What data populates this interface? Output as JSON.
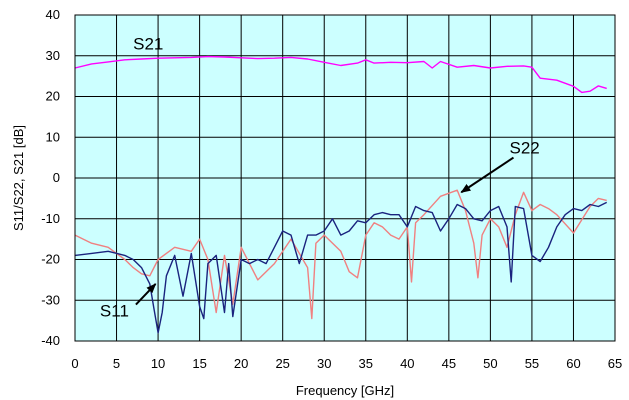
{
  "chart_data": {
    "type": "line",
    "xlabel": "Frequency [GHz]",
    "ylabel": "S11/S22, S21 [dB]",
    "xlim": [
      0,
      65
    ],
    "ylim": [
      -40,
      40
    ],
    "xticks": [
      0,
      5,
      10,
      15,
      20,
      25,
      30,
      35,
      40,
      45,
      50,
      55,
      60,
      65
    ],
    "yticks": [
      -40,
      -30,
      -20,
      -10,
      0,
      10,
      20,
      30,
      40
    ],
    "grid": true,
    "plot_background": "#ccffff",
    "annotations": [
      {
        "text": "S21",
        "x": 7,
        "y": 31.5,
        "arrow": false
      },
      {
        "text": "S22",
        "x": 52.3,
        "y": 6,
        "arrow": true,
        "arrow_to": [
          46.5,
          -3.5
        ]
      },
      {
        "text": "S11",
        "x": 3,
        "y": -34,
        "arrow": true,
        "arrow_to": [
          9.7,
          -26
        ]
      }
    ],
    "series": [
      {
        "name": "S21",
        "color": "#ff00ff",
        "x": [
          0,
          2,
          4,
          6,
          8,
          10,
          12,
          14,
          16,
          18,
          20,
          22,
          24,
          26,
          28,
          30,
          32,
          34,
          35,
          36,
          38,
          40,
          42,
          43,
          44,
          46,
          48,
          50,
          52,
          54,
          55,
          56,
          58,
          60,
          61,
          62,
          63,
          64
        ],
        "values": [
          27,
          28,
          28.5,
          29,
          29.2,
          29.4,
          29.5,
          29.6,
          29.8,
          29.7,
          29.5,
          29.3,
          29.4,
          29.6,
          29.2,
          28.4,
          27.6,
          28.2,
          29,
          28.2,
          28.4,
          28.3,
          28.6,
          27,
          28.6,
          27.2,
          27.6,
          27,
          27.4,
          27.5,
          27.2,
          24.5,
          24,
          22.5,
          21,
          21.3,
          22.6,
          22
        ]
      },
      {
        "name": "S22",
        "color": "#f08080",
        "x": [
          0,
          2,
          4,
          6,
          7,
          8,
          9,
          10,
          12,
          14,
          15,
          16,
          17,
          18,
          19,
          20,
          22,
          24,
          26,
          28,
          28.5,
          29,
          30,
          32,
          33,
          34,
          35,
          36,
          37,
          38,
          39,
          40,
          40.5,
          41,
          42,
          44,
          46,
          47,
          48,
          48.5,
          49,
          50,
          51,
          52,
          53,
          54,
          55,
          56,
          57,
          58,
          60,
          62,
          63,
          64
        ],
        "values": [
          -14,
          -16,
          -17,
          -20,
          -22,
          -23.5,
          -24,
          -20,
          -17,
          -18,
          -15,
          -20,
          -33,
          -19,
          -31,
          -17,
          -25,
          -21,
          -15,
          -22,
          -34.5,
          -16,
          -14,
          -18,
          -23,
          -24.5,
          -14,
          -11,
          -12,
          -14,
          -15,
          -12,
          -25.5,
          -11,
          -9,
          -4.5,
          -3,
          -8,
          -16,
          -24.5,
          -14,
          -10,
          -12,
          -17,
          -9,
          -3.5,
          -8,
          -6.5,
          -7.5,
          -9,
          -13.5,
          -7,
          -5,
          -5.5
        ]
      },
      {
        "name": "S11",
        "color": "#1a237e",
        "x": [
          0,
          2,
          4,
          6,
          7,
          8,
          9,
          9.5,
          10,
          10.5,
          11,
          12,
          13,
          14,
          15,
          15.5,
          16,
          17,
          18,
          18.5,
          19,
          20,
          21,
          22,
          23,
          24,
          25,
          26,
          27,
          28,
          29,
          30,
          31,
          32,
          33,
          34,
          35,
          36,
          37,
          38,
          39,
          40,
          41,
          42,
          43,
          44,
          45,
          46,
          47,
          48,
          49,
          50,
          51,
          52,
          52.5,
          53,
          54,
          55,
          56,
          57,
          58,
          59,
          60,
          61,
          62,
          63,
          64
        ],
        "values": [
          -19,
          -18.5,
          -18,
          -19,
          -20,
          -22,
          -26,
          -32,
          -38,
          -33,
          -24,
          -19,
          -29,
          -18.5,
          -31.5,
          -34.5,
          -21,
          -19,
          -33,
          -21,
          -34,
          -20,
          -21,
          -20,
          -21,
          -17,
          -13,
          -14,
          -21,
          -14,
          -14,
          -13,
          -10,
          -14,
          -13,
          -10.5,
          -11,
          -9,
          -8.5,
          -9,
          -9,
          -12,
          -7,
          -8,
          -8.5,
          -13,
          -10,
          -6.5,
          -7.5,
          -10,
          -10.5,
          -8,
          -7,
          -12,
          -25.5,
          -7,
          -7.5,
          -19,
          -20.5,
          -17,
          -12,
          -9,
          -7.5,
          -8,
          -6.5,
          -7,
          -6
        ]
      }
    ]
  }
}
